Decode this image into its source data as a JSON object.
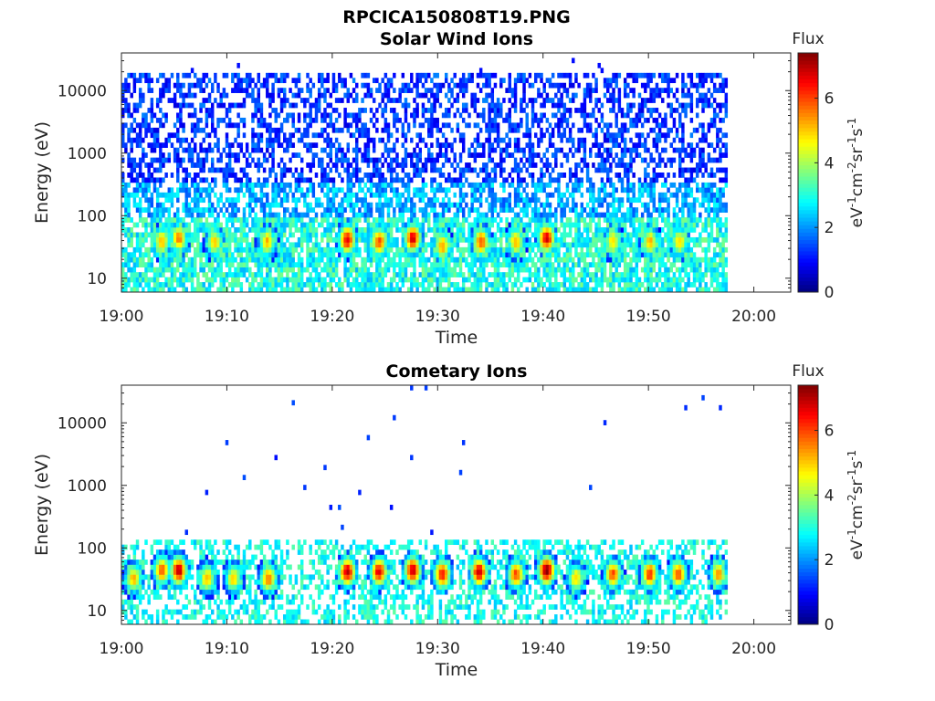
{
  "figure": {
    "title": "RPCICA150808T19.PNG"
  },
  "chart_data": [
    {
      "type": "heatmap",
      "title": "Solar Wind Ions",
      "xlabel": "Time",
      "ylabel": "Energy (eV)",
      "x_ticks": [
        "19:00",
        "19:10",
        "19:20",
        "19:30",
        "19:40",
        "19:50",
        "20:00"
      ],
      "x_range_minutes": [
        0,
        63.5
      ],
      "data_end_minute": 57.5,
      "y_scale": "log",
      "y_ticks": [
        "10",
        "100",
        "1000",
        "10000"
      ],
      "y_range": [
        6,
        40000
      ],
      "colorbar": {
        "title": "Flux",
        "label": "eV-1cm-2sr-1s-1",
        "ticks": [
          "0",
          "2",
          "4",
          "6"
        ],
        "range": [
          0,
          7.4
        ],
        "colormap": "jet"
      },
      "features": {
        "dense_background_flux": "1.5-3.5 above 10 eV, sparse up to ~15000 eV",
        "bursts": [
          {
            "minute": 3.7,
            "peak_energy_eV": 35,
            "flux": 5.0
          },
          {
            "minute": 5.3,
            "peak_energy_eV": 40,
            "flux": 5.5
          },
          {
            "minute": 8.7,
            "peak_energy_eV": 35,
            "flux": 4.8
          },
          {
            "minute": 13.7,
            "peak_energy_eV": 35,
            "flux": 5.0
          },
          {
            "minute": 21.3,
            "peak_energy_eV": 38,
            "flux": 6.5
          },
          {
            "minute": 24.3,
            "peak_energy_eV": 35,
            "flux": 5.8
          },
          {
            "minute": 27.5,
            "peak_energy_eV": 40,
            "flux": 6.6
          },
          {
            "minute": 30.3,
            "peak_energy_eV": 30,
            "flux": 5.2
          },
          {
            "minute": 34.0,
            "peak_energy_eV": 35,
            "flux": 5.8
          },
          {
            "minute": 37.3,
            "peak_energy_eV": 35,
            "flux": 5.0
          },
          {
            "minute": 40.2,
            "peak_energy_eV": 40,
            "flux": 6.6
          },
          {
            "minute": 46.5,
            "peak_energy_eV": 35,
            "flux": 4.8
          },
          {
            "minute": 50.0,
            "peak_energy_eV": 35,
            "flux": 5.0
          },
          {
            "minute": 52.8,
            "peak_energy_eV": 35,
            "flux": 4.8
          }
        ]
      }
    },
    {
      "type": "heatmap",
      "title": "Cometary Ions",
      "xlabel": "Time",
      "ylabel": "Energy (eV)",
      "x_ticks": [
        "19:00",
        "19:10",
        "19:20",
        "19:30",
        "19:40",
        "19:50",
        "20:00"
      ],
      "x_range_minutes": [
        0,
        63.5
      ],
      "data_end_minute": 57.5,
      "y_scale": "log",
      "y_ticks": [
        "10",
        "100",
        "1000",
        "10000"
      ],
      "y_range": [
        6,
        40000
      ],
      "colorbar": {
        "title": "Flux",
        "label": "eV-1cm-2sr-1s-1",
        "ticks": [
          "0",
          "2",
          "4",
          "6"
        ],
        "range": [
          0,
          7.4
        ],
        "colormap": "jet"
      },
      "features": {
        "sparse_high_energy_points": "isolated blue points (flux ~1) from 200 to 30000 eV",
        "bursts": [
          {
            "minute": 1.0,
            "peak_energy_eV": 30,
            "flux": 5.0
          },
          {
            "minute": 3.7,
            "peak_energy_eV": 40,
            "flux": 5.8
          },
          {
            "minute": 5.3,
            "peak_energy_eV": 40,
            "flux": 6.8
          },
          {
            "minute": 8.0,
            "peak_energy_eV": 30,
            "flux": 5.0
          },
          {
            "minute": 10.5,
            "peak_energy_eV": 30,
            "flux": 4.8
          },
          {
            "minute": 13.8,
            "peak_energy_eV": 30,
            "flux": 5.5
          },
          {
            "minute": 21.3,
            "peak_energy_eV": 38,
            "flux": 6.8
          },
          {
            "minute": 24.3,
            "peak_energy_eV": 38,
            "flux": 6.5
          },
          {
            "minute": 27.5,
            "peak_energy_eV": 40,
            "flux": 6.8
          },
          {
            "minute": 30.3,
            "peak_energy_eV": 35,
            "flux": 6.3
          },
          {
            "minute": 33.8,
            "peak_energy_eV": 38,
            "flux": 6.8
          },
          {
            "minute": 37.3,
            "peak_energy_eV": 35,
            "flux": 5.8
          },
          {
            "minute": 40.2,
            "peak_energy_eV": 40,
            "flux": 7.2
          },
          {
            "minute": 43.0,
            "peak_energy_eV": 30,
            "flux": 4.8
          },
          {
            "minute": 46.5,
            "peak_energy_eV": 35,
            "flux": 5.8
          },
          {
            "minute": 50.0,
            "peak_energy_eV": 35,
            "flux": 6.0
          },
          {
            "minute": 52.7,
            "peak_energy_eV": 35,
            "flux": 5.8
          },
          {
            "minute": 56.5,
            "peak_energy_eV": 35,
            "flux": 5.2
          }
        ]
      }
    }
  ]
}
